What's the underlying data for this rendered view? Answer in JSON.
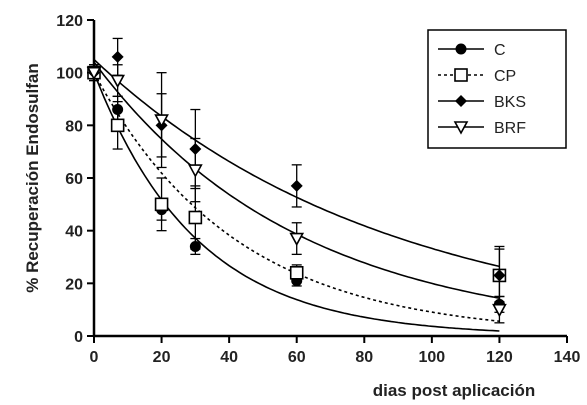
{
  "chart_data": {
    "type": "scatter",
    "xlabel": "dias post aplicación",
    "ylabel": "% Recuperación Endosulfan",
    "xlim": [
      0,
      140
    ],
    "ylim": [
      0,
      120
    ],
    "x_ticks": [
      0,
      20,
      40,
      60,
      80,
      100,
      120,
      140
    ],
    "y_ticks": [
      0,
      20,
      40,
      60,
      80,
      100,
      120
    ],
    "grid": false,
    "legend_position": "top-right",
    "series": [
      {
        "name": "C",
        "marker": "circle-filled",
        "line": "solid",
        "fit": {
          "a": 100,
          "k": 0.033
        },
        "x": [
          0,
          7,
          20,
          30,
          60,
          120
        ],
        "y": [
          100,
          86,
          48,
          34,
          21,
          12
        ],
        "err": [
          3,
          5,
          4,
          3,
          2,
          3
        ]
      },
      {
        "name": "CP",
        "marker": "square-open",
        "line": "dotted",
        "fit": {
          "a": 100,
          "k": 0.024
        },
        "x": [
          0,
          7,
          20,
          30,
          60,
          120
        ],
        "y": [
          100,
          80,
          50,
          45,
          24,
          23
        ],
        "err": [
          3,
          9,
          10,
          12,
          3,
          10
        ]
      },
      {
        "name": "BKS",
        "marker": "diamond-filled",
        "line": "solid",
        "fit": {
          "a": 105,
          "k": 0.0115
        },
        "x": [
          0,
          7,
          20,
          30,
          60,
          120
        ],
        "y": [
          100,
          106,
          80,
          71,
          57,
          23
        ],
        "err": [
          2,
          7,
          12,
          15,
          8,
          11
        ]
      },
      {
        "name": "BRF",
        "marker": "triangle-down-open",
        "line": "solid",
        "fit": {
          "a": 104,
          "k": 0.0165
        },
        "x": [
          0,
          7,
          20,
          30,
          60,
          120
        ],
        "y": [
          100,
          97,
          82,
          63,
          37,
          10
        ],
        "err": [
          2,
          6,
          18,
          12,
          6,
          5
        ]
      }
    ]
  }
}
